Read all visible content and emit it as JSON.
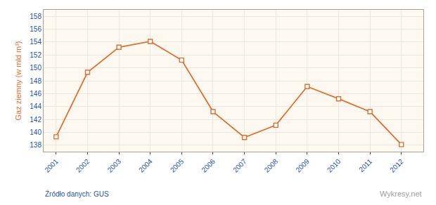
{
  "chart_data": {
    "type": "line",
    "x": [
      2001,
      2002,
      2003,
      2004,
      2005,
      2006,
      2007,
      2008,
      2009,
      2010,
      2011,
      2012
    ],
    "values": [
      139.3,
      149.3,
      153.2,
      154.1,
      151.2,
      143.2,
      139.2,
      141.1,
      147.1,
      145.2,
      143.2,
      138.1
    ],
    "color": "#e07030",
    "marker": "square",
    "ylabel": "Gaz ziemny (w mld m³)",
    "xlim": [
      2000.6,
      2012.7
    ],
    "xticks": [
      2001,
      2002,
      2003,
      2004,
      2005,
      2006,
      2007,
      2008,
      2009,
      2010,
      2011,
      2012
    ],
    "ylim": [
      137,
      159
    ],
    "yticks": [
      138,
      140,
      142,
      144,
      146,
      148,
      150,
      152,
      154,
      156,
      158
    ],
    "grid": true,
    "annotations": [
      "Źródło danych: GUS",
      "Wykresy.net"
    ]
  }
}
